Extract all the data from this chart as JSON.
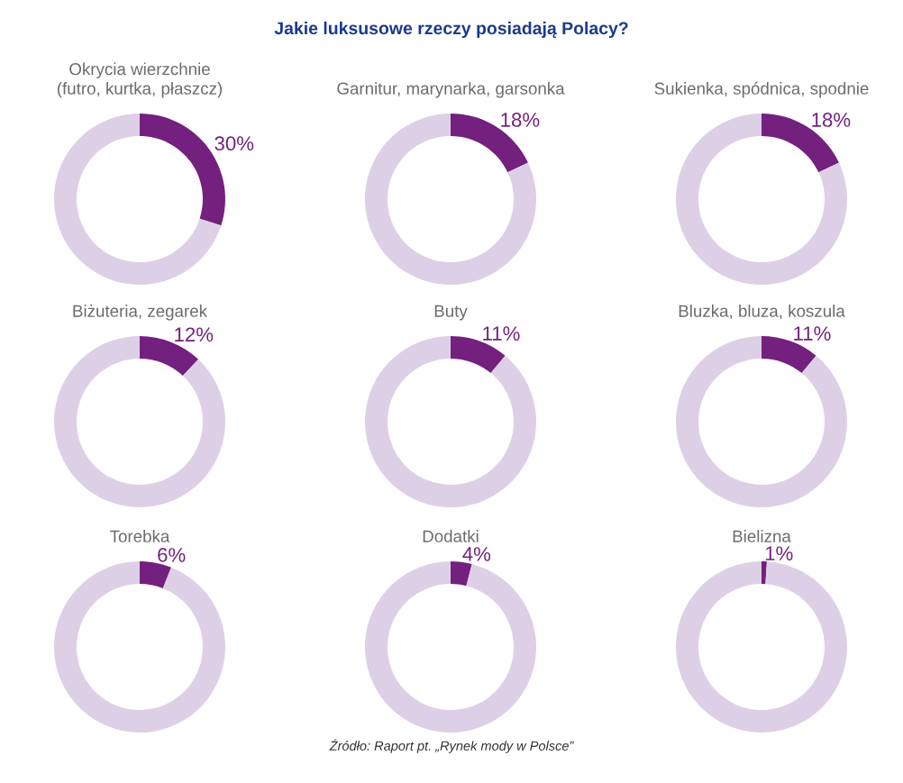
{
  "chart_data": [
    {
      "type": "donut",
      "title": "Okrycia wierzchnie\n(futro, kurtka, płaszcz)",
      "categories": [
        null,
        null
      ],
      "values": [
        30,
        70
      ],
      "colors": [
        "#74207f",
        "#ddd0e6"
      ],
      "value_labels": [
        "30%",
        null
      ],
      "annotations": [
        "Jakie luksusowe rzeczy posiadają Polacy?"
      ]
    },
    {
      "type": "donut",
      "title": "Garnitur, marynarka, garsonka",
      "categories": [
        null,
        null
      ],
      "values": [
        18,
        82
      ],
      "colors": [
        "#74207f",
        "#ddd0e6"
      ],
      "value_labels": [
        "18%",
        null
      ]
    },
    {
      "type": "donut",
      "title": "Sukienka, spódnica, spodnie",
      "categories": [
        null,
        null
      ],
      "values": [
        18,
        82
      ],
      "colors": [
        "#74207f",
        "#ddd0e6"
      ],
      "value_labels": [
        "18%",
        null
      ]
    },
    {
      "type": "donut",
      "title": "Biżuteria, zegarek",
      "categories": [
        null,
        null
      ],
      "values": [
        12,
        88
      ],
      "colors": [
        "#74207f",
        "#ddd0e6"
      ],
      "value_labels": [
        "12%",
        null
      ]
    },
    {
      "type": "donut",
      "title": "Buty",
      "categories": [
        null,
        null
      ],
      "values": [
        11,
        89
      ],
      "colors": [
        "#74207f",
        "#ddd0e6"
      ],
      "value_labels": [
        "11%",
        null
      ]
    },
    {
      "type": "donut",
      "title": "Bluzka, bluza, koszula",
      "categories": [
        null,
        null
      ],
      "values": [
        11,
        89
      ],
      "colors": [
        "#74207f",
        "#ddd0e6"
      ],
      "value_labels": [
        "11%",
        null
      ]
    },
    {
      "type": "donut",
      "title": "Torebka",
      "categories": [
        null,
        null
      ],
      "values": [
        6,
        94
      ],
      "colors": [
        "#74207f",
        "#ddd0e6"
      ],
      "value_labels": [
        "6%",
        null
      ]
    },
    {
      "type": "donut",
      "title": "Dodatki",
      "categories": [
        null,
        null
      ],
      "values": [
        4,
        96
      ],
      "colors": [
        "#74207f",
        "#ddd0e6"
      ],
      "value_labels": [
        "4%",
        null
      ]
    },
    {
      "type": "donut",
      "title": "Bielizna",
      "categories": [
        null,
        null
      ],
      "values": [
        1,
        99
      ],
      "colors": [
        "#74207f",
        "#ddd0e6"
      ],
      "value_labels": [
        "1%",
        null
      ],
      "annotations": [
        "Źródło: Raport pt. „Rynek mody w Polsce”"
      ]
    }
  ]
}
